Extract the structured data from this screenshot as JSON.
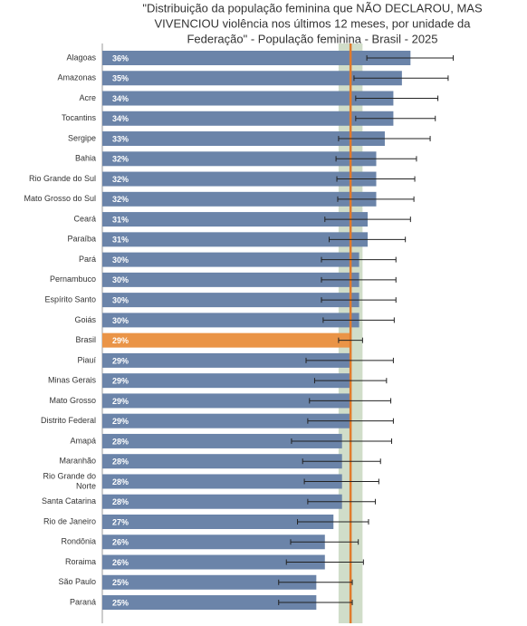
{
  "chart_data": {
    "type": "bar",
    "orientation": "horizontal",
    "title": [
      "\"Distribuição da população feminina que NÃO DECLAROU, MAS",
      "VIVENCIOU violência nos últimos 12 meses, por unidade da",
      "Federação\" - População feminina - Brasil - 2025"
    ],
    "categories": [
      "Alagoas",
      "Amazonas",
      "Acre",
      "Tocantins",
      "Sergipe",
      "Bahia",
      "Rio Grande do Sul",
      "Mato Grosso do Sul",
      "Ceará",
      "Paraíba",
      "Pará",
      "Pernambuco",
      "Espírito Santo",
      "Goiás",
      "Brasil",
      "Piauí",
      "Minas Gerais",
      "Mato Grosso",
      "Distrito Federal",
      "Amapá",
      "Maranhão",
      "Rio Grande do Norte",
      "Santa Catarina",
      "Rio de Janeiro",
      "Rondônia",
      "Roraima",
      "São Paulo",
      "Paraná"
    ],
    "values": [
      36,
      35,
      34,
      34,
      33,
      32,
      32,
      32,
      31,
      31,
      30,
      30,
      30,
      30,
      29,
      29,
      29,
      29,
      29,
      28,
      28,
      28,
      28,
      27,
      26,
      26,
      25,
      25
    ],
    "value_labels": [
      "36%",
      "35%",
      "34%",
      "34%",
      "33%",
      "32%",
      "32%",
      "32%",
      "31%",
      "31%",
      "30%",
      "30%",
      "30%",
      "30%",
      "29%",
      "29%",
      "29%",
      "29%",
      "29%",
      "28%",
      "28%",
      "28%",
      "28%",
      "27%",
      "26%",
      "26%",
      "25%",
      "25%"
    ],
    "ci_low": [
      30.9,
      29.4,
      29.6,
      29.6,
      27.6,
      27.3,
      27.4,
      27.5,
      26.0,
      26.5,
      25.6,
      25.6,
      25.6,
      25.8,
      27.6,
      23.8,
      24.8,
      24.2,
      24.0,
      22.1,
      23.4,
      23.6,
      24.0,
      22.8,
      22.0,
      21.5,
      20.6,
      20.6
    ],
    "ci_high": [
      41.0,
      40.4,
      39.2,
      38.9,
      38.3,
      36.7,
      36.5,
      36.4,
      36.0,
      35.4,
      34.3,
      34.3,
      34.3,
      34.1,
      30.4,
      34.0,
      33.2,
      33.7,
      34.0,
      33.8,
      32.5,
      32.3,
      31.9,
      31.1,
      29.9,
      30.5,
      29.2,
      29.2
    ],
    "color": "#6b84a9",
    "highlight_color": "#ea9447",
    "highlight_category": "Brasil",
    "xlim": [
      0,
      49.4
    ]
  }
}
